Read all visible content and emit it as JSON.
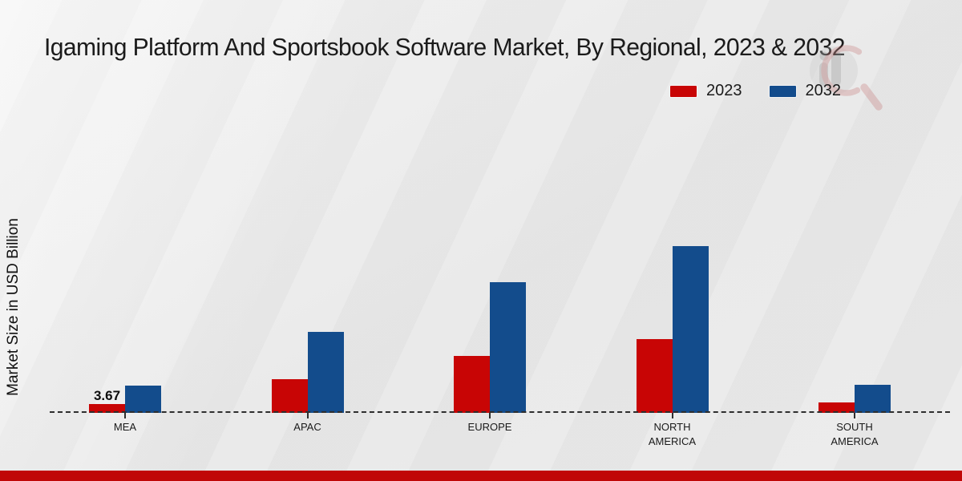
{
  "chart_data": {
    "type": "bar",
    "title": "Igaming Platform And Sportsbook Software Market, By Regional, 2023 & 2032",
    "ylabel": "Market Size in USD Billion",
    "xlabel": "",
    "categories": [
      "MEA",
      "APAC",
      "EUROPE",
      "NORTH AMERICA",
      "SOUTH AMERICA"
    ],
    "series": [
      {
        "name": "2023",
        "color": "#c80505",
        "values": [
          3.67,
          14.0,
          23.7,
          30.7,
          4.3
        ]
      },
      {
        "name": "2032",
        "color": "#134c8c",
        "values": [
          11.3,
          33.7,
          54.4,
          69.4,
          11.7
        ]
      }
    ],
    "ylim": [
      0,
      75
    ],
    "grid": false,
    "legend_position": "top-right",
    "baseline_style": "dashed",
    "data_labels": [
      {
        "series_index": 0,
        "category_index": 0,
        "text": "3.67"
      }
    ]
  },
  "legend": {
    "items": [
      {
        "label": "2023",
        "color": "#c80505"
      },
      {
        "label": "2032",
        "color": "#134c8c"
      }
    ]
  },
  "branding": {
    "watermark": "market-research-future-logo",
    "banner_color": "#c00707"
  }
}
